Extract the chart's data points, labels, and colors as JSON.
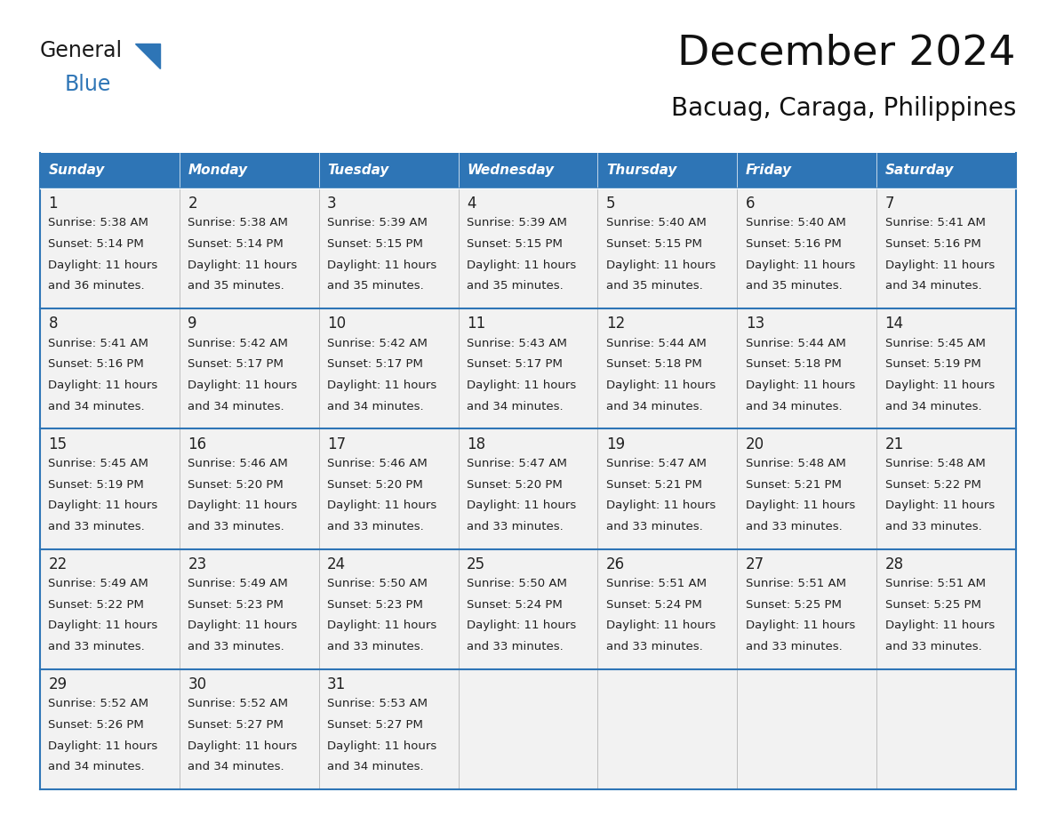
{
  "title": "December 2024",
  "subtitle": "Bacuag, Caraga, Philippines",
  "header_color": "#2E75B6",
  "header_text_color": "#FFFFFF",
  "cell_bg_color": "#F2F2F2",
  "border_color": "#2E75B6",
  "row_border_color": "#2E75B6",
  "day_number_color": "#222222",
  "text_color": "#222222",
  "logo_general_color": "#1A1A1A",
  "logo_blue_color": "#2E75B6",
  "logo_triangle_color": "#2E75B6",
  "days_of_week": [
    "Sunday",
    "Monday",
    "Tuesday",
    "Wednesday",
    "Thursday",
    "Friday",
    "Saturday"
  ],
  "calendar_data": [
    [
      {
        "day": 1,
        "sunrise": "5:38 AM",
        "sunset": "5:14 PM",
        "daylight_hours": 11,
        "daylight_minutes": 36
      },
      {
        "day": 2,
        "sunrise": "5:38 AM",
        "sunset": "5:14 PM",
        "daylight_hours": 11,
        "daylight_minutes": 35
      },
      {
        "day": 3,
        "sunrise": "5:39 AM",
        "sunset": "5:15 PM",
        "daylight_hours": 11,
        "daylight_minutes": 35
      },
      {
        "day": 4,
        "sunrise": "5:39 AM",
        "sunset": "5:15 PM",
        "daylight_hours": 11,
        "daylight_minutes": 35
      },
      {
        "day": 5,
        "sunrise": "5:40 AM",
        "sunset": "5:15 PM",
        "daylight_hours": 11,
        "daylight_minutes": 35
      },
      {
        "day": 6,
        "sunrise": "5:40 AM",
        "sunset": "5:16 PM",
        "daylight_hours": 11,
        "daylight_minutes": 35
      },
      {
        "day": 7,
        "sunrise": "5:41 AM",
        "sunset": "5:16 PM",
        "daylight_hours": 11,
        "daylight_minutes": 34
      }
    ],
    [
      {
        "day": 8,
        "sunrise": "5:41 AM",
        "sunset": "5:16 PM",
        "daylight_hours": 11,
        "daylight_minutes": 34
      },
      {
        "day": 9,
        "sunrise": "5:42 AM",
        "sunset": "5:17 PM",
        "daylight_hours": 11,
        "daylight_minutes": 34
      },
      {
        "day": 10,
        "sunrise": "5:42 AM",
        "sunset": "5:17 PM",
        "daylight_hours": 11,
        "daylight_minutes": 34
      },
      {
        "day": 11,
        "sunrise": "5:43 AM",
        "sunset": "5:17 PM",
        "daylight_hours": 11,
        "daylight_minutes": 34
      },
      {
        "day": 12,
        "sunrise": "5:44 AM",
        "sunset": "5:18 PM",
        "daylight_hours": 11,
        "daylight_minutes": 34
      },
      {
        "day": 13,
        "sunrise": "5:44 AM",
        "sunset": "5:18 PM",
        "daylight_hours": 11,
        "daylight_minutes": 34
      },
      {
        "day": 14,
        "sunrise": "5:45 AM",
        "sunset": "5:19 PM",
        "daylight_hours": 11,
        "daylight_minutes": 34
      }
    ],
    [
      {
        "day": 15,
        "sunrise": "5:45 AM",
        "sunset": "5:19 PM",
        "daylight_hours": 11,
        "daylight_minutes": 33
      },
      {
        "day": 16,
        "sunrise": "5:46 AM",
        "sunset": "5:20 PM",
        "daylight_hours": 11,
        "daylight_minutes": 33
      },
      {
        "day": 17,
        "sunrise": "5:46 AM",
        "sunset": "5:20 PM",
        "daylight_hours": 11,
        "daylight_minutes": 33
      },
      {
        "day": 18,
        "sunrise": "5:47 AM",
        "sunset": "5:20 PM",
        "daylight_hours": 11,
        "daylight_minutes": 33
      },
      {
        "day": 19,
        "sunrise": "5:47 AM",
        "sunset": "5:21 PM",
        "daylight_hours": 11,
        "daylight_minutes": 33
      },
      {
        "day": 20,
        "sunrise": "5:48 AM",
        "sunset": "5:21 PM",
        "daylight_hours": 11,
        "daylight_minutes": 33
      },
      {
        "day": 21,
        "sunrise": "5:48 AM",
        "sunset": "5:22 PM",
        "daylight_hours": 11,
        "daylight_minutes": 33
      }
    ],
    [
      {
        "day": 22,
        "sunrise": "5:49 AM",
        "sunset": "5:22 PM",
        "daylight_hours": 11,
        "daylight_minutes": 33
      },
      {
        "day": 23,
        "sunrise": "5:49 AM",
        "sunset": "5:23 PM",
        "daylight_hours": 11,
        "daylight_minutes": 33
      },
      {
        "day": 24,
        "sunrise": "5:50 AM",
        "sunset": "5:23 PM",
        "daylight_hours": 11,
        "daylight_minutes": 33
      },
      {
        "day": 25,
        "sunrise": "5:50 AM",
        "sunset": "5:24 PM",
        "daylight_hours": 11,
        "daylight_minutes": 33
      },
      {
        "day": 26,
        "sunrise": "5:51 AM",
        "sunset": "5:24 PM",
        "daylight_hours": 11,
        "daylight_minutes": 33
      },
      {
        "day": 27,
        "sunrise": "5:51 AM",
        "sunset": "5:25 PM",
        "daylight_hours": 11,
        "daylight_minutes": 33
      },
      {
        "day": 28,
        "sunrise": "5:51 AM",
        "sunset": "5:25 PM",
        "daylight_hours": 11,
        "daylight_minutes": 33
      }
    ],
    [
      {
        "day": 29,
        "sunrise": "5:52 AM",
        "sunset": "5:26 PM",
        "daylight_hours": 11,
        "daylight_minutes": 34
      },
      {
        "day": 30,
        "sunrise": "5:52 AM",
        "sunset": "5:27 PM",
        "daylight_hours": 11,
        "daylight_minutes": 34
      },
      {
        "day": 31,
        "sunrise": "5:53 AM",
        "sunset": "5:27 PM",
        "daylight_hours": 11,
        "daylight_minutes": 34
      },
      null,
      null,
      null,
      null
    ]
  ],
  "figsize": [
    11.88,
    9.18
  ],
  "dpi": 100,
  "header_fontsize": 34,
  "subtitle_fontsize": 20,
  "dow_fontsize": 11,
  "day_num_fontsize": 12,
  "cell_text_fontsize": 9.5
}
